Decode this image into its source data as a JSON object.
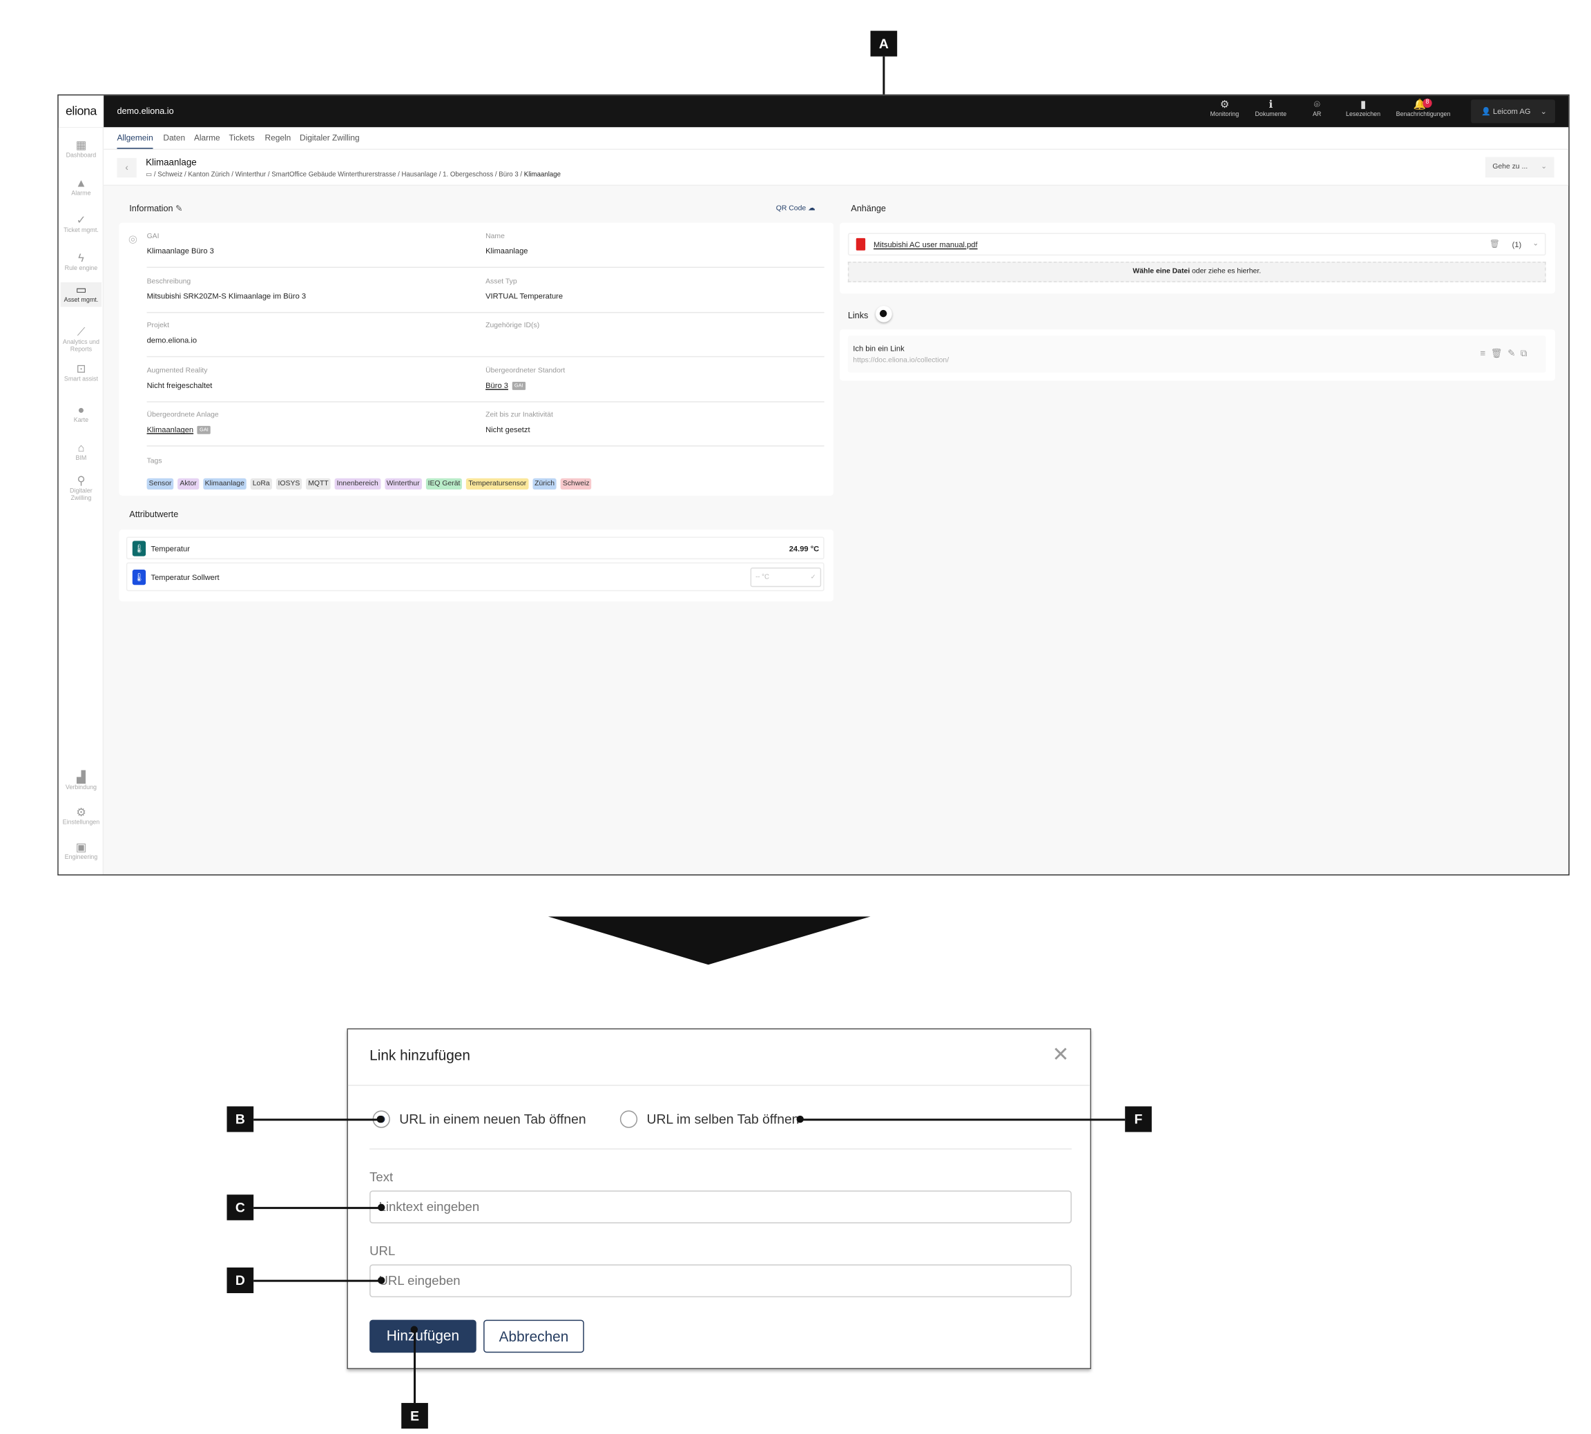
{
  "app": {
    "logo": "eliona",
    "host": "demo.eliona.io",
    "accent": "#25406a"
  },
  "topbar": {
    "items": [
      {
        "label": "Monitoring",
        "icon": "monitoring-icon",
        "glyph": "⚙"
      },
      {
        "label": "Dokumente",
        "icon": "info-icon",
        "glyph": "ℹ"
      },
      {
        "label": "AR",
        "icon": "ar-icon",
        "glyph": "⌾"
      },
      {
        "label": "Lesezeichen",
        "icon": "bookmark-icon",
        "glyph": "▮"
      },
      {
        "label": "Benachrichtigungen",
        "icon": "bell-icon",
        "glyph": "🔔",
        "badge": "8"
      }
    ],
    "user": "Leicom AG"
  },
  "sidebar": {
    "items": [
      {
        "label": "Dashboard",
        "icon": "dashboard-icon",
        "glyph": "▦"
      },
      {
        "label": "Alarme",
        "icon": "alarm-icon",
        "glyph": "▲"
      },
      {
        "label": "Ticket mgmt.",
        "icon": "ticket-icon",
        "glyph": "✓"
      },
      {
        "label": "Rule engine",
        "icon": "bolt-icon",
        "glyph": "ϟ"
      },
      {
        "label": "Asset mgmt.",
        "icon": "asset-icon",
        "glyph": "▭",
        "active": true
      },
      {
        "label": "Analytics und Reports",
        "icon": "analytics-icon",
        "glyph": "⟋"
      },
      {
        "label": "Smart assist",
        "icon": "smart-assist-icon",
        "glyph": "⊡"
      },
      {
        "label": "Karte",
        "icon": "map-pin-icon",
        "glyph": "●"
      },
      {
        "label": "BIM",
        "icon": "bim-icon",
        "glyph": "⌂"
      },
      {
        "label": "Digitaler Zwilling",
        "icon": "digital-twin-icon",
        "glyph": "⚲"
      }
    ],
    "bottom": [
      {
        "label": "Verbindung",
        "icon": "signal-icon",
        "glyph": "▟"
      },
      {
        "label": "Einstellungen",
        "icon": "settings-icon",
        "glyph": "⚙"
      },
      {
        "label": "Engineering",
        "icon": "engineering-icon",
        "glyph": "▣"
      }
    ]
  },
  "tabs": [
    {
      "label": "Allgemein",
      "active": true
    },
    {
      "label": "Daten"
    },
    {
      "label": "Alarme"
    },
    {
      "label": "Tickets"
    },
    {
      "label": "Regeln"
    },
    {
      "label": "Digitaler Zwilling"
    }
  ],
  "header": {
    "title": "Klimaanlage",
    "breadcrumb": [
      "Schweiz",
      "Kanton Zürich",
      "Winterthur",
      "SmartOffice Gebäude Winterthurerstrasse",
      "Hausanlage",
      "1. Obergeschoss",
      "Büro 3",
      "Klimaanlage"
    ],
    "goto": "Gehe zu ..."
  },
  "information": {
    "title": "Information",
    "qr": "QR Code",
    "gai_badge": "GAI",
    "fields": [
      {
        "label": "GAI",
        "value": "Klimaanlage Büro 3"
      },
      {
        "label": "Name",
        "value": "Klimaanlage"
      },
      {
        "label": "Beschreibung",
        "value": "Mitsubishi SRK20ZM-S Klimaanlage im Büro 3"
      },
      {
        "label": "Asset Typ",
        "value": "VIRTUAL Temperature"
      },
      {
        "label": "Projekt",
        "value": "demo.eliona.io"
      },
      {
        "label": "Zugehörige ID(s)",
        "value": ""
      },
      {
        "label": "Augmented Reality",
        "value": "Nicht freigeschaltet"
      },
      {
        "label": "Übergeordneter Standort",
        "value": "Büro 3",
        "link": true
      },
      {
        "label": "Übergeordnete Anlage",
        "value": "Klimaanlagen",
        "link": true
      },
      {
        "label": "Zeit bis zur Inaktivität",
        "value": "Nicht gesetzt"
      }
    ],
    "tags_label": "Tags",
    "tags": [
      {
        "label": "Sensor",
        "color": "#bcd6f5"
      },
      {
        "label": "Aktor",
        "color": "#e6d3f3"
      },
      {
        "label": "Klimaanlage",
        "color": "#bcd6f5"
      },
      {
        "label": "LoRa",
        "color": "#e8e8e8"
      },
      {
        "label": "IOSYS",
        "color": "#e8e8e8"
      },
      {
        "label": "MQTT",
        "color": "#e8e8e8"
      },
      {
        "label": "Innenbereich",
        "color": "#e6d3f3"
      },
      {
        "label": "Winterthur",
        "color": "#e6d3f3"
      },
      {
        "label": "IEQ Gerät",
        "color": "#b9ecc9"
      },
      {
        "label": "Temperatursensor",
        "color": "#fbe79b"
      },
      {
        "label": "Zürich",
        "color": "#bcd6f5"
      },
      {
        "label": "Schweiz",
        "color": "#f7c9cc"
      }
    ]
  },
  "attributes": {
    "title": "Attributwerte",
    "rows": [
      {
        "label": "Temperatur",
        "value": "24.99 °C",
        "color": "#0d6b6b"
      },
      {
        "label": "Temperatur Sollwert",
        "placeholder": "-- °C",
        "color": "#1a4fe0"
      }
    ]
  },
  "attachments": {
    "title": "Anhänge",
    "file": "Mitsubishi AC user manual.pdf",
    "count": "(1)",
    "drop_bold": "Wähle eine Datei",
    "drop_rest": " oder ziehe es hierher."
  },
  "links": {
    "title": "Links",
    "items": [
      {
        "text": "Ich bin ein Link",
        "url": "https://doc.eliona.io/collection/"
      }
    ]
  },
  "dialog": {
    "title": "Link hinzufügen",
    "radio_new_tab": "URL in einem neuen Tab öffnen",
    "radio_same_tab": "URL im selben Tab öffnen",
    "selected": "new_tab",
    "text_label": "Text",
    "text_placeholder": "Linktext eingeben",
    "url_label": "URL",
    "url_placeholder": "URL eingeben",
    "add": "Hinzufügen",
    "cancel": "Abbrechen",
    "primary_color": "#253c60"
  },
  "annotations": {
    "a": "A",
    "b": "B",
    "c": "C",
    "d": "D",
    "e": "E",
    "f": "F"
  }
}
